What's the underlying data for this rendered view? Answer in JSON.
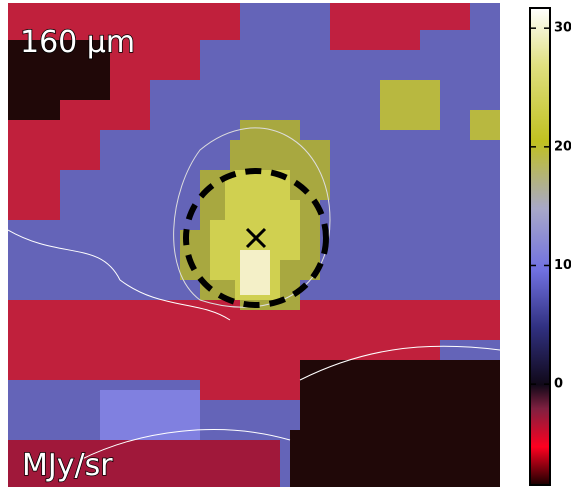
{
  "image": {
    "band_label": "160 μm",
    "units_label": "MJy/sr"
  },
  "colorbar": {
    "lim": [
      -8.5,
      31.7
    ],
    "ticks": [
      0,
      10,
      20,
      30
    ]
  }
}
